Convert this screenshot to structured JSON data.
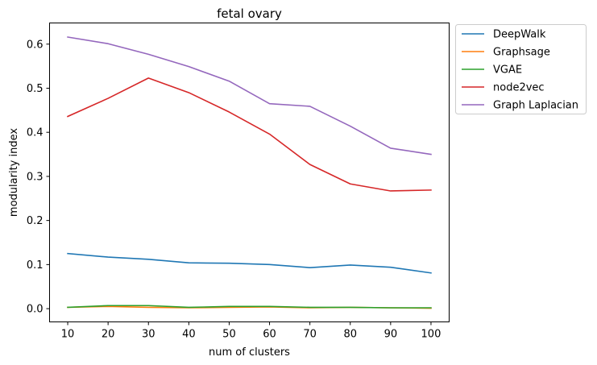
{
  "chart_data": {
    "type": "line",
    "title": "fetal ovary",
    "xlabel": "num of clusters",
    "ylabel": "modularity index",
    "x": [
      10,
      20,
      30,
      40,
      50,
      60,
      70,
      80,
      90,
      100
    ],
    "xticks": [
      "10",
      "20",
      "30",
      "40",
      "50",
      "60",
      "70",
      "80",
      "90",
      "100"
    ],
    "yticks": [
      0.0,
      0.1,
      0.2,
      0.3,
      0.4,
      0.5,
      0.6
    ],
    "ytick_labels": [
      "0.0",
      "0.1",
      "0.2",
      "0.3",
      "0.4",
      "0.5",
      "0.6"
    ],
    "xlim": [
      5.5,
      104.5
    ],
    "ylim": [
      -0.03,
      0.648
    ],
    "grid": false,
    "legend_position": "outside-top-right",
    "series": [
      {
        "name": "DeepWalk",
        "color": "#1f77b4",
        "values": [
          0.125,
          0.117,
          0.112,
          0.104,
          0.103,
          0.1,
          0.093,
          0.099,
          0.094,
          0.081
        ]
      },
      {
        "name": "Graphsage",
        "color": "#ff7f0e",
        "values": [
          0.003,
          0.005,
          0.003,
          0.002,
          0.003,
          0.004,
          0.002,
          0.003,
          0.002,
          0.001
        ]
      },
      {
        "name": "VGAE",
        "color": "#2ca02c",
        "values": [
          0.003,
          0.007,
          0.007,
          0.003,
          0.005,
          0.005,
          0.003,
          0.003,
          0.002,
          0.002
        ]
      },
      {
        "name": "node2vec",
        "color": "#d62728",
        "values": [
          0.436,
          0.477,
          0.523,
          0.49,
          0.446,
          0.396,
          0.327,
          0.283,
          0.267,
          0.269
        ]
      },
      {
        "name": "Graph Laplacian",
        "color": "#9467bd",
        "values": [
          0.616,
          0.601,
          0.577,
          0.549,
          0.516,
          0.465,
          0.459,
          0.414,
          0.364,
          0.35
        ]
      }
    ]
  }
}
